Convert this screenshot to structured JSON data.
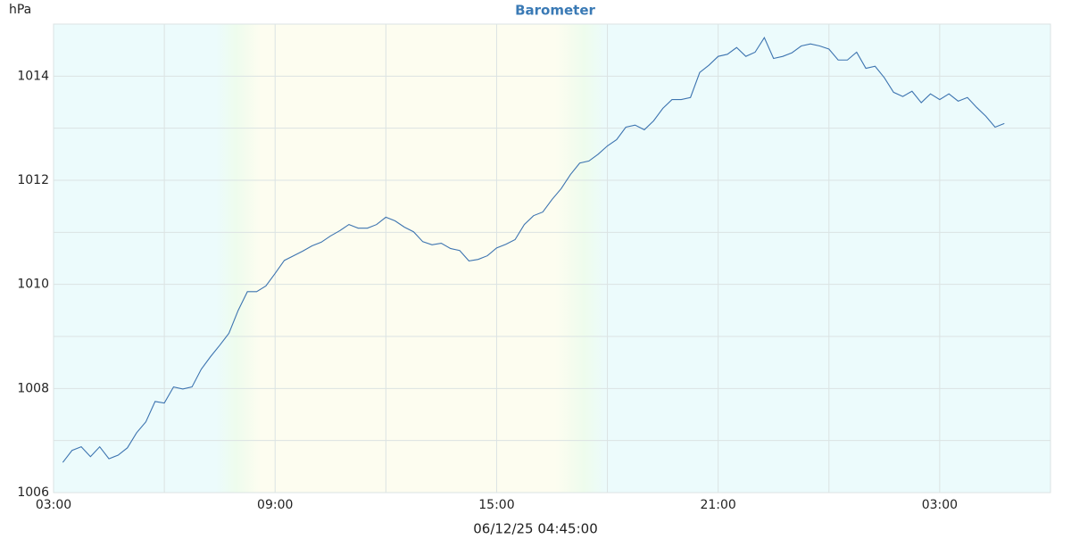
{
  "chart_data": {
    "type": "line",
    "title": "Barometer",
    "y_label": "hPa",
    "footer": "06/12/25 04:45:00",
    "color": "#3d74b0",
    "grid": true,
    "night_color": "#ecfbfc",
    "day_color": "#fdfdf0",
    "twilight_color": "#eefced",
    "sunrise": [
      4.4,
      5.6
    ],
    "sunset": [
      13.6,
      15.0
    ],
    "xlim": [
      0,
      27
    ],
    "ylim": [
      1006,
      1015
    ],
    "xticks": [
      {
        "value": 0,
        "label": "03:00"
      },
      {
        "value": 6,
        "label": "09:00"
      },
      {
        "value": 12,
        "label": "15:00"
      },
      {
        "value": 18,
        "label": "21:00"
      },
      {
        "value": 24,
        "label": "03:00"
      }
    ],
    "xminor": [
      3,
      9,
      15,
      21
    ],
    "yticks": [
      1006,
      1008,
      1010,
      1012,
      1014
    ],
    "yminor": [
      1007,
      1009,
      1011,
      1013
    ],
    "x": [
      0.25,
      0.5,
      0.75,
      1,
      1.25,
      1.5,
      1.75,
      2,
      2.25,
      2.5,
      2.75,
      3,
      3.25,
      3.5,
      3.75,
      4,
      4.25,
      4.5,
      4.75,
      5,
      5.25,
      5.5,
      5.75,
      6,
      6.25,
      6.5,
      6.75,
      7,
      7.25,
      7.5,
      7.75,
      8,
      8.25,
      8.5,
      8.75,
      9,
      9.25,
      9.5,
      9.75,
      10,
      10.25,
      10.5,
      10.75,
      11,
      11.25,
      11.5,
      11.75,
      12,
      12.25,
      12.5,
      12.75,
      13,
      13.25,
      13.5,
      13.75,
      14,
      14.25,
      14.5,
      14.75,
      15,
      15.25,
      15.5,
      15.75,
      16,
      16.25,
      16.5,
      16.75,
      17,
      17.25,
      17.5,
      17.75,
      18,
      18.25,
      18.5,
      18.75,
      19,
      19.25,
      19.5,
      19.75,
      20,
      20.25,
      20.5,
      20.75,
      21,
      21.25,
      21.5,
      21.75,
      22,
      22.25,
      22.5,
      22.75,
      23,
      23.25,
      23.5,
      23.75,
      24,
      24.25,
      24.5,
      24.75,
      25,
      25.25,
      25.5,
      25.75
    ],
    "values": [
      1006.58,
      1006.81,
      1006.88,
      1006.69,
      1006.88,
      1006.65,
      1006.72,
      1006.86,
      1007.15,
      1007.36,
      1007.75,
      1007.72,
      1008.03,
      1007.99,
      1008.03,
      1008.37,
      1008.61,
      1008.83,
      1009.06,
      1009.5,
      1009.86,
      1009.86,
      1009.97,
      1010.21,
      1010.46,
      1010.55,
      1010.64,
      1010.74,
      1010.81,
      1010.93,
      1011.03,
      1011.15,
      1011.08,
      1011.08,
      1011.15,
      1011.29,
      1011.22,
      1011.1,
      1011.01,
      1010.82,
      1010.76,
      1010.79,
      1010.69,
      1010.65,
      1010.45,
      1010.48,
      1010.55,
      1010.7,
      1010.77,
      1010.86,
      1011.15,
      1011.32,
      1011.39,
      1011.63,
      1011.84,
      1012.11,
      1012.33,
      1012.37,
      1012.5,
      1012.66,
      1012.78,
      1013.02,
      1013.06,
      1012.97,
      1013.14,
      1013.38,
      1013.55,
      1013.55,
      1013.59,
      1014.07,
      1014.21,
      1014.38,
      1014.42,
      1014.55,
      1014.38,
      1014.46,
      1014.74,
      1014.34,
      1014.38,
      1014.45,
      1014.58,
      1014.62,
      1014.58,
      1014.52,
      1014.31,
      1014.31,
      1014.46,
      1014.15,
      1014.19,
      1013.97,
      1013.69,
      1013.61,
      1013.71,
      1013.49,
      1013.66,
      1013.55,
      1013.66,
      1013.52,
      1013.59,
      1013.4,
      1013.23,
      1013.02,
      1013.09
    ]
  }
}
